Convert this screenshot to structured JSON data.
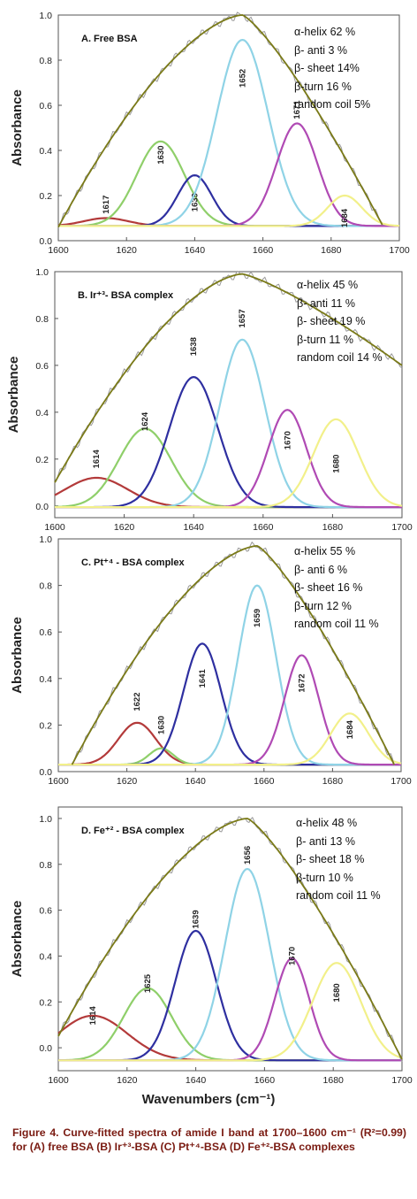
{
  "caption": "Figure 4. Curve-fitted spectra of amide I band at 1700–1600 cm⁻¹ (R²=0.99) for (A) free BSA (B) Ir⁺³-BSA (C) Pt⁺⁴-BSA (D) Fe⁺²-BSA complexes",
  "xaxis_title": "Wavenumbers (cm⁻¹)",
  "colors": {
    "envelope": "#7a7a18",
    "raw": "#9a9a9a",
    "1600s_red": "#b33a3a",
    "green": "#8fcf6a",
    "blue": "#2e2fa0",
    "cyan": "#8fd3e6",
    "magenta": "#b04ab4",
    "yellow": "#f2f08a"
  },
  "chart_data": [
    {
      "type": "line",
      "title": "A.  Free BSA",
      "ylabel": "Absorbance",
      "xlim": [
        1600,
        1700
      ],
      "ylim": [
        0,
        1.0
      ],
      "xticks": [
        1600,
        1620,
        1640,
        1660,
        1680,
        1700
      ],
      "yticks": [
        0.0,
        0.2,
        0.4,
        0.6,
        0.8,
        1.0
      ],
      "ytick_labels": [
        "0.0",
        "0.2",
        "0.4",
        "0.6",
        "0.8",
        "1.0"
      ],
      "stats": [
        "α-helix 62 %",
        "β- anti  3 %",
        "β- sheet  14%",
        "β-turn  16 %",
        "random coil 5%"
      ],
      "series": [
        {
          "label": "1617",
          "center": 1614,
          "height": 0.1,
          "sigma": 6.5,
          "color": "#b33a3a",
          "label_value": 0.16
        },
        {
          "label": "1630",
          "center": 1630,
          "height": 0.44,
          "sigma": 7.0,
          "color": "#8fcf6a",
          "label_value": 0.38
        },
        {
          "label": "1639",
          "center": 1640,
          "height": 0.29,
          "sigma": 5.0,
          "color": "#2e2fa0",
          "label_value": 0.17
        },
        {
          "label": "1652",
          "center": 1654,
          "height": 0.89,
          "sigma": 7.5,
          "color": "#8fd3e6",
          "label_value": 0.72
        },
        {
          "label": "1671",
          "center": 1670,
          "height": 0.52,
          "sigma": 6.0,
          "color": "#b04ab4",
          "label_value": 0.58
        },
        {
          "label": "1684",
          "center": 1684,
          "height": 0.2,
          "sigma": 5.0,
          "color": "#f2f08a",
          "label_value": 0.1
        }
      ],
      "baseline": 0.065,
      "envelope": {
        "start": [
          1600,
          0.06
        ],
        "peak": [
          1654,
          1.0
        ],
        "end": [
          1695,
          0.07
        ]
      }
    },
    {
      "type": "line",
      "title": "B.  Ir⁺³- BSA complex",
      "ylabel": "Absorbance",
      "xlim": [
        1600,
        1700
      ],
      "ylim": [
        -0.05,
        1.0
      ],
      "xticks": [
        1600,
        1620,
        1640,
        1660,
        1680,
        1700
      ],
      "yticks": [
        0.0,
        0.2,
        0.4,
        0.6,
        0.8,
        1.0
      ],
      "ytick_labels": [
        "0.0",
        "0.2",
        "0.4",
        "0.6",
        "0.8",
        "1.0"
      ],
      "stats": [
        "α-helix   45 %",
        "β- anti   11 %",
        "β- sheet 19 %",
        "β-turn    11 %",
        "random coil 14 %"
      ],
      "series": [
        {
          "label": "1614",
          "center": 1612,
          "height": 0.12,
          "sigma": 9.0,
          "color": "#b33a3a",
          "label_value": 0.2
        },
        {
          "label": "1624",
          "center": 1626,
          "height": 0.33,
          "sigma": 7.5,
          "color": "#8fcf6a",
          "label_value": 0.36
        },
        {
          "label": "1638",
          "center": 1640,
          "height": 0.55,
          "sigma": 7.0,
          "color": "#2e2fa0",
          "label_value": 0.68
        },
        {
          "label": "1657",
          "center": 1654,
          "height": 0.71,
          "sigma": 6.5,
          "color": "#8fd3e6",
          "label_value": 0.8
        },
        {
          "label": "1670",
          "center": 1667,
          "height": 0.41,
          "sigma": 5.5,
          "color": "#b04ab4",
          "label_value": 0.28
        },
        {
          "label": "1680",
          "center": 1681,
          "height": 0.37,
          "sigma": 6.5,
          "color": "#f2f08a",
          "label_value": 0.18
        }
      ],
      "baseline": -0.005,
      "envelope": {
        "start": [
          1600,
          0.1
        ],
        "peak": [
          1654,
          0.99
        ],
        "end": [
          1700,
          0.6
        ]
      }
    },
    {
      "type": "line",
      "title": "C.  Pt⁺⁴ - BSA complex",
      "ylabel": "Absorbance",
      "xlim": [
        1600,
        1700
      ],
      "ylim": [
        0,
        1.0
      ],
      "xticks": [
        1600,
        1620,
        1640,
        1660,
        1680,
        1700
      ],
      "yticks": [
        0.0,
        0.2,
        0.4,
        0.6,
        0.8,
        1.0
      ],
      "ytick_labels": [
        "0.0",
        "0.2",
        "0.4",
        "0.6",
        "0.8",
        "1.0"
      ],
      "stats": [
        "α-helix   55 %",
        "β- anti  6 %",
        "β- sheet   16 %",
        "β-turn  12 %",
        "random coil 11 %"
      ],
      "series": [
        {
          "label": "1622",
          "center": 1623,
          "height": 0.21,
          "sigma": 5.5,
          "color": "#b33a3a",
          "label_value": 0.3
        },
        {
          "label": "1630",
          "center": 1630,
          "height": 0.1,
          "sigma": 3.5,
          "color": "#8fcf6a",
          "label_value": 0.2
        },
        {
          "label": "1641",
          "center": 1642,
          "height": 0.55,
          "sigma": 5.5,
          "color": "#2e2fa0",
          "label_value": 0.4
        },
        {
          "label": "1659",
          "center": 1658,
          "height": 0.8,
          "sigma": 5.5,
          "color": "#8fd3e6",
          "label_value": 0.66
        },
        {
          "label": "1672",
          "center": 1671,
          "height": 0.5,
          "sigma": 5.0,
          "color": "#b04ab4",
          "label_value": 0.38
        },
        {
          "label": "1684",
          "center": 1685,
          "height": 0.25,
          "sigma": 5.5,
          "color": "#f2f08a",
          "label_value": 0.18
        }
      ],
      "baseline": 0.03,
      "envelope": {
        "start": [
          1604,
          0.03
        ],
        "peak": [
          1658,
          0.97
        ],
        "end": [
          1698,
          0.03
        ]
      }
    },
    {
      "type": "line",
      "title": "D. Fe⁺² - BSA complex",
      "ylabel": "Absorbance",
      "xlim": [
        1600,
        1700
      ],
      "ylim": [
        -0.1,
        1.05
      ],
      "xticks": [
        1600,
        1620,
        1640,
        1660,
        1680,
        1700
      ],
      "yticks": [
        0.0,
        0.2,
        0.4,
        0.6,
        0.8,
        1.0
      ],
      "ytick_labels": [
        "0.0",
        "0.2",
        "0.4",
        "0.6",
        "0.8",
        "1.0"
      ],
      "stats": [
        "α-helix 48 %",
        "β- anti  13 %",
        "β- sheet  18 %",
        "β-turn  10 %",
        "random coil 11 %"
      ],
      "series": [
        {
          "label": "1614",
          "center": 1610,
          "height": 0.14,
          "sigma": 10.0,
          "color": "#b33a3a",
          "label_value": 0.14
        },
        {
          "label": "1625",
          "center": 1626,
          "height": 0.26,
          "sigma": 7.0,
          "color": "#8fcf6a",
          "label_value": 0.28
        },
        {
          "label": "1639",
          "center": 1640,
          "height": 0.51,
          "sigma": 6.0,
          "color": "#2e2fa0",
          "label_value": 0.56
        },
        {
          "label": "1656",
          "center": 1655,
          "height": 0.78,
          "sigma": 6.5,
          "color": "#8fd3e6",
          "label_value": 0.84
        },
        {
          "label": "1670",
          "center": 1668,
          "height": 0.39,
          "sigma": 5.0,
          "color": "#b04ab4",
          "label_value": 0.4
        },
        {
          "label": "1680",
          "center": 1681,
          "height": 0.37,
          "sigma": 7.0,
          "color": "#f2f08a",
          "label_value": 0.24
        }
      ],
      "baseline": -0.055,
      "envelope": {
        "start": [
          1600,
          0.05
        ],
        "peak": [
          1655,
          1.0
        ],
        "end": [
          1700,
          -0.05
        ]
      }
    }
  ]
}
